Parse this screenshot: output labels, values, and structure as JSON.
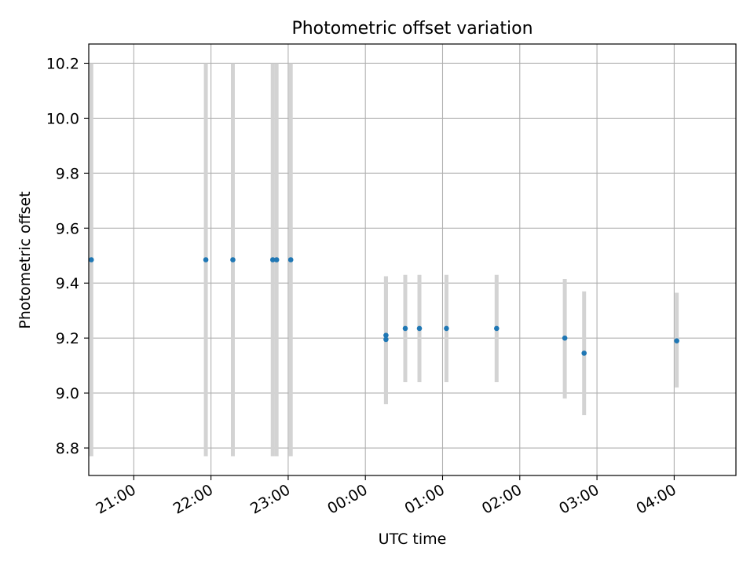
{
  "chart_data": {
    "type": "scatter",
    "title": "Photometric offset variation",
    "xlabel": "UTC time",
    "ylabel": "Photometric offset",
    "x_axis_type": "time",
    "x_range": [
      "20:25",
      "04:48"
    ],
    "ylim": [
      8.7,
      10.27
    ],
    "x_ticks": [
      "21:00",
      "22:00",
      "23:00",
      "00:00",
      "01:00",
      "02:00",
      "03:00",
      "04:00"
    ],
    "y_ticks": [
      "8.8",
      "9.0",
      "9.2",
      "9.4",
      "9.6",
      "9.8",
      "10.0",
      "10.2"
    ],
    "grid": true,
    "error_bars": true,
    "colors": {
      "points": "#1f77b4",
      "error_bars": "#d3d3d3",
      "grid": "#b0b0b0"
    },
    "series": [
      {
        "points": [
          {
            "x": "20:27",
            "y": 9.485,
            "err_low": 8.77,
            "err_high": 10.2
          },
          {
            "x": "21:56",
            "y": 9.485,
            "err_low": 8.77,
            "err_high": 10.2
          },
          {
            "x": "22:17",
            "y": 9.485,
            "err_low": 8.77,
            "err_high": 10.2
          },
          {
            "x": "22:48",
            "y": 9.485,
            "err_low": 8.77,
            "err_high": 10.2
          },
          {
            "x": "22:51",
            "y": 9.485,
            "err_low": 8.77,
            "err_high": 10.2
          },
          {
            "x": "23:02",
            "y": 9.485,
            "err_low": 8.77,
            "err_high": 10.2
          },
          {
            "x": "00:16",
            "y": 9.195,
            "err_low": 8.96,
            "err_high": 9.425
          },
          {
            "x": "00:16",
            "y": 9.21,
            "err_low": 8.96,
            "err_high": 9.425
          },
          {
            "x": "00:31",
            "y": 9.235,
            "err_low": 9.04,
            "err_high": 9.43
          },
          {
            "x": "00:42",
            "y": 9.235,
            "err_low": 9.04,
            "err_high": 9.43
          },
          {
            "x": "01:03",
            "y": 9.235,
            "err_low": 9.04,
            "err_high": 9.43
          },
          {
            "x": "01:42",
            "y": 9.235,
            "err_low": 9.04,
            "err_high": 9.43
          },
          {
            "x": "02:35",
            "y": 9.2,
            "err_low": 8.98,
            "err_high": 9.415
          },
          {
            "x": "02:50",
            "y": 9.145,
            "err_low": 8.92,
            "err_high": 9.37
          },
          {
            "x": "04:02",
            "y": 9.19,
            "err_low": 9.02,
            "err_high": 9.365
          }
        ]
      }
    ]
  }
}
